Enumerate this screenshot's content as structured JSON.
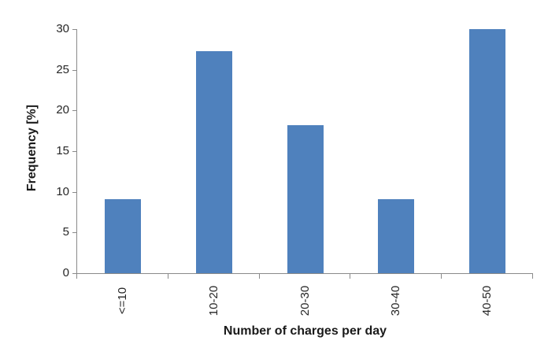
{
  "chart_data": {
    "type": "bar",
    "categories": [
      "<=10",
      "10-20",
      "20-30",
      "30-40",
      "40-50"
    ],
    "values": [
      9.1,
      27.3,
      18.2,
      9.1,
      30
    ],
    "xlabel": "Number of charges per day",
    "ylabel": "Frequency [%]",
    "ylim": [
      0,
      30
    ],
    "yticks": [
      0,
      5,
      10,
      15,
      20,
      25,
      30
    ],
    "grid": false,
    "legend": "none",
    "bar_color": "#4f81bd",
    "axis_color": "#8a8a8a",
    "text_color": "#262626"
  }
}
